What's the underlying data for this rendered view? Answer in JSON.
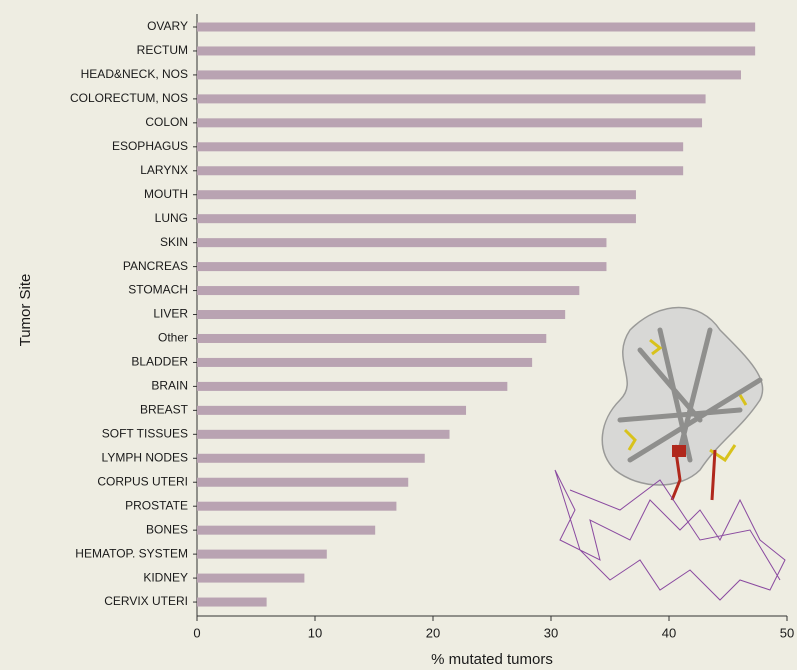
{
  "chart_data": {
    "type": "barh",
    "xlabel": "% mutated tumors",
    "ylabel": "Tumor Site",
    "categories": [
      "OVARY",
      "RECTUM",
      "HEAD&NECK, NOS",
      "COLORECTUM, NOS",
      "COLON",
      "ESOPHAGUS",
      "LARYNX",
      "MOUTH",
      "LUNG",
      "SKIN",
      "PANCREAS",
      "STOMACH",
      "LIVER",
      "Other",
      "BLADDER",
      "BRAIN",
      "BREAST",
      "SOFT TISSUES",
      "LYMPH NODES",
      "CORPUS UTERI",
      "PROSTATE",
      "BONES",
      "HEMATOP. SYSTEM",
      "KIDNEY",
      "CERVIX UTERI"
    ],
    "values": [
      47.3,
      47.3,
      46.1,
      43.1,
      42.8,
      41.2,
      41.2,
      37.2,
      37.2,
      34.7,
      34.7,
      32.4,
      31.2,
      29.6,
      28.4,
      26.3,
      22.8,
      21.4,
      19.3,
      17.9,
      16.9,
      15.1,
      11.0,
      9.1,
      5.9
    ],
    "color": "#b9a3b2",
    "xlim": [
      0,
      50
    ],
    "xticks": [
      0,
      10,
      20,
      30,
      40,
      50
    ],
    "grid": false
  }
}
